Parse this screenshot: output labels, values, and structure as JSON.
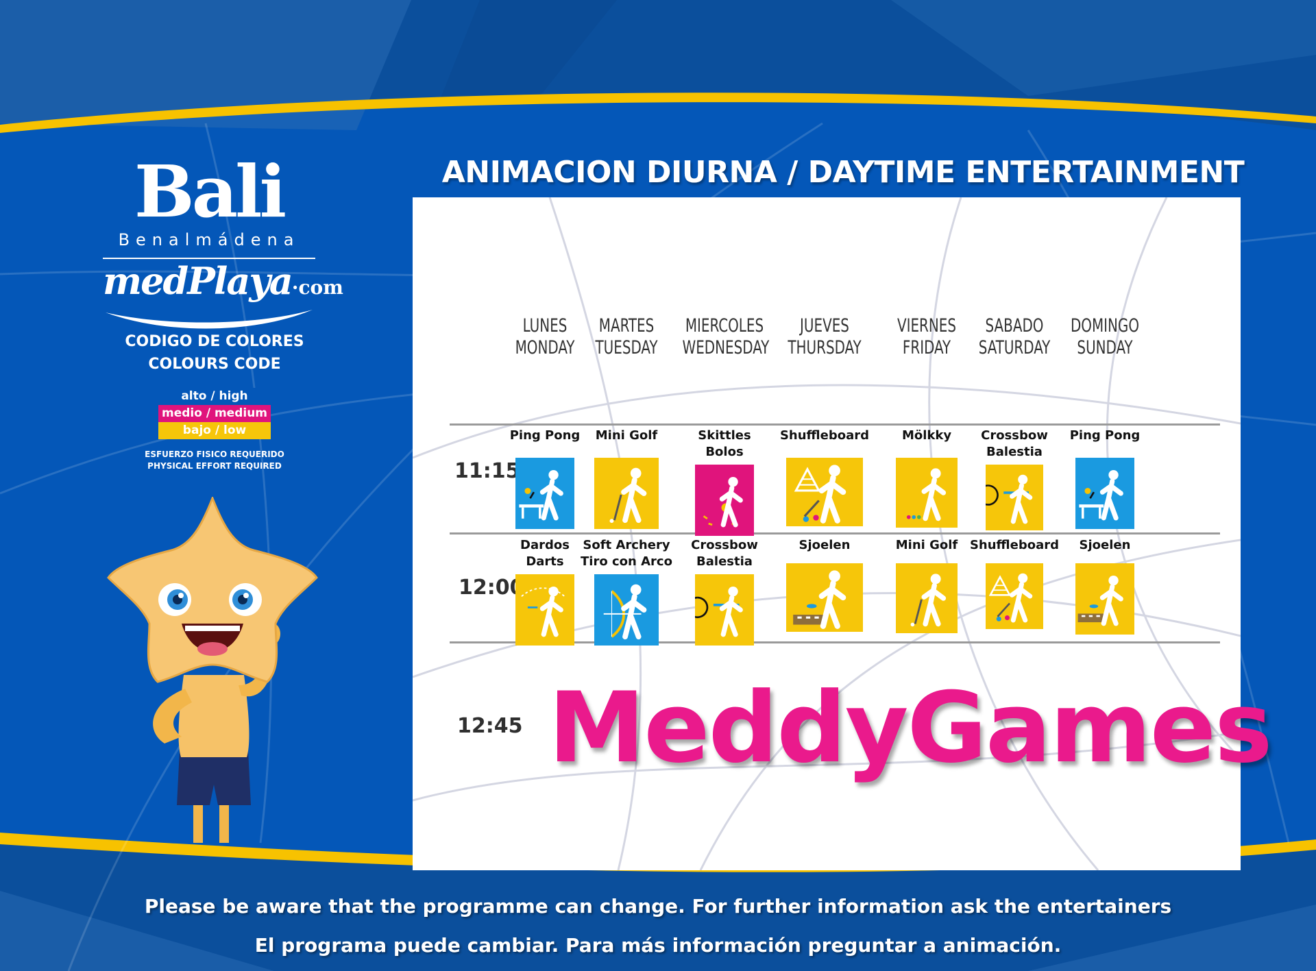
{
  "colors": {
    "blue_bg": "#0457b8",
    "gold": "#f7c200",
    "high": "#1a9ae0",
    "medium": "#e0147c",
    "low": "#f6c60a",
    "meddy": "#ea1a8c"
  },
  "brand": {
    "name": "Bali",
    "city": "Benalmádena",
    "site_main": "medPlaya",
    "site_suffix": "·com"
  },
  "legend": {
    "title_es": "CODIGO DE COLORES",
    "title_en": "COLOURS CODE",
    "items": [
      {
        "label": "alto / high",
        "color": "#0457b8"
      },
      {
        "label": "medio / medium",
        "color": "#e0147c"
      },
      {
        "label": "bajo / low",
        "color": "#f6c60a"
      }
    ],
    "note_es": "ESFUERZO FISICO REQUERIDO",
    "note_en": "PHYSICAL EFFORT REQUIRED"
  },
  "title": "ANIMACION DIURNA / DAYTIME ENTERTAINMENT",
  "days": [
    {
      "es": "LUNES",
      "en": "MONDAY"
    },
    {
      "es": "MARTES",
      "en": "TUESDAY"
    },
    {
      "es": "MIERCOLES",
      "en": "WEDNESDAY"
    },
    {
      "es": "JUEVES",
      "en": "THURSDAY"
    },
    {
      "es": "VIERNES",
      "en": "FRIDAY"
    },
    {
      "es": "SABADO",
      "en": "SATURDAY"
    },
    {
      "es": "DOMINGO",
      "en": "SUNDAY"
    }
  ],
  "slots": [
    {
      "time": "11:15",
      "activities": [
        {
          "name": "Ping Pong",
          "name2": "",
          "level": "high",
          "icon": "ping-pong-icon"
        },
        {
          "name": "Mini Golf",
          "name2": "",
          "level": "low",
          "icon": "golf-icon"
        },
        {
          "name": "Skittles",
          "name2": "Bolos",
          "level": "medium",
          "icon": "bowling-icon"
        },
        {
          "name": "Shuffleboard",
          "name2": "",
          "level": "low",
          "icon": "shuffleboard-icon"
        },
        {
          "name": "Mölkky",
          "name2": "",
          "level": "low",
          "icon": "molkky-icon"
        },
        {
          "name": "Crossbow",
          "name2": "Balestia",
          "level": "low",
          "icon": "crossbow-icon"
        },
        {
          "name": "Ping Pong",
          "name2": "",
          "level": "high",
          "icon": "ping-pong-icon"
        }
      ]
    },
    {
      "time": "12:00",
      "activities": [
        {
          "name": "Dardos",
          "name2": "Darts",
          "level": "low",
          "icon": "darts-icon"
        },
        {
          "name": "Soft Archery",
          "name2": "Tiro con Arco",
          "level": "high",
          "icon": "archery-icon"
        },
        {
          "name": "Crossbow",
          "name2": "Balestia",
          "level": "low",
          "icon": "crossbow-icon"
        },
        {
          "name": "Sjoelen",
          "name2": "",
          "level": "low",
          "icon": "sjoelen-icon"
        },
        {
          "name": "Mini Golf",
          "name2": "",
          "level": "low",
          "icon": "golf-icon"
        },
        {
          "name": "Shuffleboard",
          "name2": "",
          "level": "low",
          "icon": "shuffleboard-icon"
        },
        {
          "name": "Sjoelen",
          "name2": "",
          "level": "low",
          "icon": "sjoelen-icon"
        }
      ]
    },
    {
      "time": "12:45",
      "event": "MeddyGames"
    }
  ],
  "footer": {
    "en": "Please be aware that the programme can change. For further information ask the entertainers",
    "es": "El programa puede cambiar. Para más información preguntar a animación."
  }
}
